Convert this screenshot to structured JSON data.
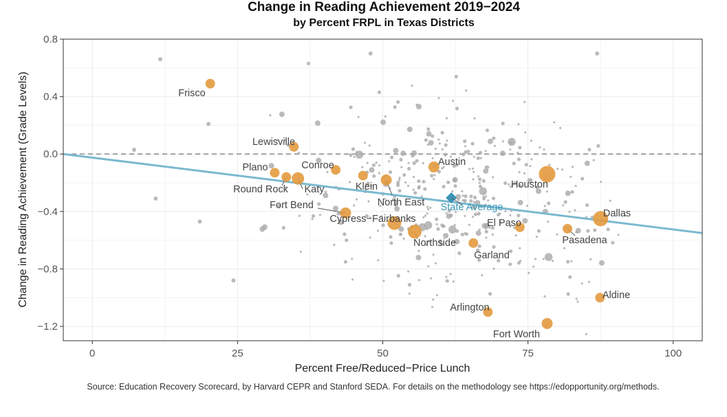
{
  "chart_data": {
    "type": "scatter",
    "title": "Change in Reading  Achievement 2019−2024",
    "subtitle": "by Percent FRPL in Texas Districts",
    "xlabel": "Percent Free/Reduced−Price Lunch",
    "ylabel": "Change in Reading Achievement (Grade Levels)",
    "xlim": [
      -5,
      105
    ],
    "ylim": [
      -1.3,
      0.8
    ],
    "x_ticks": [
      0,
      25,
      50,
      75,
      100
    ],
    "x_tick_labels": [
      "0",
      "25",
      "50",
      "75",
      "100"
    ],
    "y_ticks": [
      0.8,
      0.4,
      0.0,
      -0.4,
      -0.8,
      -1.2
    ],
    "y_tick_labels": [
      "0.8",
      "0.4",
      "0.0",
      "−0.4",
      "−0.8",
      "−1.2"
    ],
    "reference_line_y": 0,
    "trend_line": {
      "x": [
        -5,
        105
      ],
      "y": [
        0.0,
        -0.55
      ]
    },
    "state_average": {
      "label": "State Average",
      "x": 61.8,
      "y": -0.305
    },
    "highlighted_districts": [
      {
        "name": "Frisco",
        "x": 20.3,
        "y": 0.49,
        "size": 7
      },
      {
        "name": "Lewisville",
        "x": 34.7,
        "y": 0.05,
        "size": 7
      },
      {
        "name": "Plano",
        "x": 31.4,
        "y": -0.13,
        "size": 7
      },
      {
        "name": "Round Rock",
        "x": 33.4,
        "y": -0.16,
        "size": 7
      },
      {
        "name": "Katy",
        "x": 35.4,
        "y": -0.17,
        "size": 9
      },
      {
        "name": "Conroe",
        "x": 41.9,
        "y": -0.11,
        "size": 7
      },
      {
        "name": "Klein",
        "x": 46.6,
        "y": -0.15,
        "size": 7
      },
      {
        "name": "Fort Bend",
        "x": 43.6,
        "y": -0.41,
        "size": 8
      },
      {
        "name": "North East",
        "x": 50.6,
        "y": -0.18,
        "size": 8
      },
      {
        "name": "Cypress−Fairbanks",
        "x": 52.0,
        "y": -0.48,
        "size": 10
      },
      {
        "name": "Austin",
        "x": 58.8,
        "y": -0.09,
        "size": 8
      },
      {
        "name": "Houston",
        "x": 78.3,
        "y": -0.14,
        "size": 12
      },
      {
        "name": "Northside",
        "x": 55.5,
        "y": -0.54,
        "size": 10
      },
      {
        "name": "El Paso",
        "x": 73.6,
        "y": -0.51,
        "size": 7
      },
      {
        "name": "Garland",
        "x": 65.6,
        "y": -0.62,
        "size": 7
      },
      {
        "name": "Dallas",
        "x": 87.5,
        "y": -0.45,
        "size": 11
      },
      {
        "name": "Pasadena",
        "x": 81.8,
        "y": -0.52,
        "size": 7
      },
      {
        "name": "Arlington",
        "x": 68.1,
        "y": -1.1,
        "size": 7
      },
      {
        "name": "Aldine",
        "x": 87.4,
        "y": -1.0,
        "size": 7
      },
      {
        "name": "Fort Worth",
        "x": 78.3,
        "y": -1.18,
        "size": 8
      }
    ],
    "other_districts_note": "several hundred smaller Texas districts drawn as grey points",
    "colors": {
      "highlight": "#e39a3e",
      "other": "#a9a9a9",
      "trend": "#7ab9cf",
      "state_avg": "#3b95b5",
      "panel_border": "#333333",
      "grid": "#ebebeb"
    }
  },
  "source_note": "Source: Education Recovery Scorecard, by Harvard CEPR and Stanford SEDA. For details on the methodology see https://edopportunity.org/methods."
}
